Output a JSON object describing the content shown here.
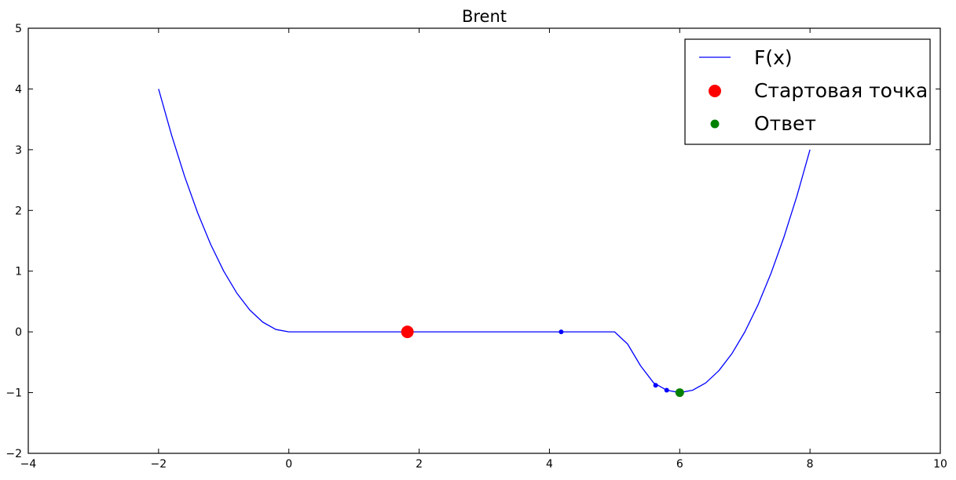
{
  "chart_data": {
    "type": "line",
    "title": "Brent",
    "xlabel": "",
    "ylabel": "",
    "xlim": [
      -4,
      10
    ],
    "ylim": [
      -2,
      5
    ],
    "xticks": [
      -4,
      -2,
      0,
      2,
      4,
      6,
      8,
      10
    ],
    "yticks": [
      -2,
      -1,
      0,
      1,
      2,
      3,
      4,
      5
    ],
    "xtick_labels": [
      "−4",
      "−2",
      "0",
      "2",
      "4",
      "6",
      "8",
      "10"
    ],
    "ytick_labels": [
      "−2",
      "−1",
      "0",
      "1",
      "2",
      "3",
      "4",
      "5"
    ],
    "grid": false,
    "legend_position": "top-right",
    "series": [
      {
        "name": "F(x)",
        "kind": "line",
        "color": "#0000ff",
        "x": [
          -2.0,
          -1.8,
          -1.6,
          -1.4,
          -1.2,
          -1.0,
          -0.8,
          -0.6,
          -0.4,
          -0.2,
          0.0,
          1.0,
          2.0,
          3.0,
          4.0,
          5.0,
          5.2,
          5.4,
          5.6,
          5.8,
          6.0,
          6.2,
          6.4,
          6.6,
          6.8,
          7.0,
          7.2,
          7.4,
          7.6,
          7.8,
          8.0
        ],
        "y": [
          4.0,
          3.24,
          2.56,
          1.96,
          1.44,
          1.0,
          0.64,
          0.36,
          0.16,
          0.04,
          0.0,
          0.0,
          0.0,
          0.0,
          0.0,
          0.0,
          -0.2,
          -0.56,
          -0.84,
          -0.96,
          -1.0,
          -0.96,
          -0.84,
          -0.64,
          -0.36,
          0.0,
          0.44,
          0.96,
          1.56,
          2.24,
          3.0
        ]
      },
      {
        "name": "Стартовая точка",
        "kind": "scatter",
        "color": "#ff0000",
        "x": [
          1.82
        ],
        "y": [
          0.0
        ]
      },
      {
        "name": "",
        "kind": "scatter",
        "color": "#0000ff",
        "x": [
          4.18,
          5.63,
          5.8
        ],
        "y": [
          0.0,
          -0.88,
          -0.96
        ]
      },
      {
        "name": "Ответ",
        "kind": "scatter",
        "color": "#008000",
        "x": [
          6.0
        ],
        "y": [
          -1.0
        ]
      }
    ]
  }
}
